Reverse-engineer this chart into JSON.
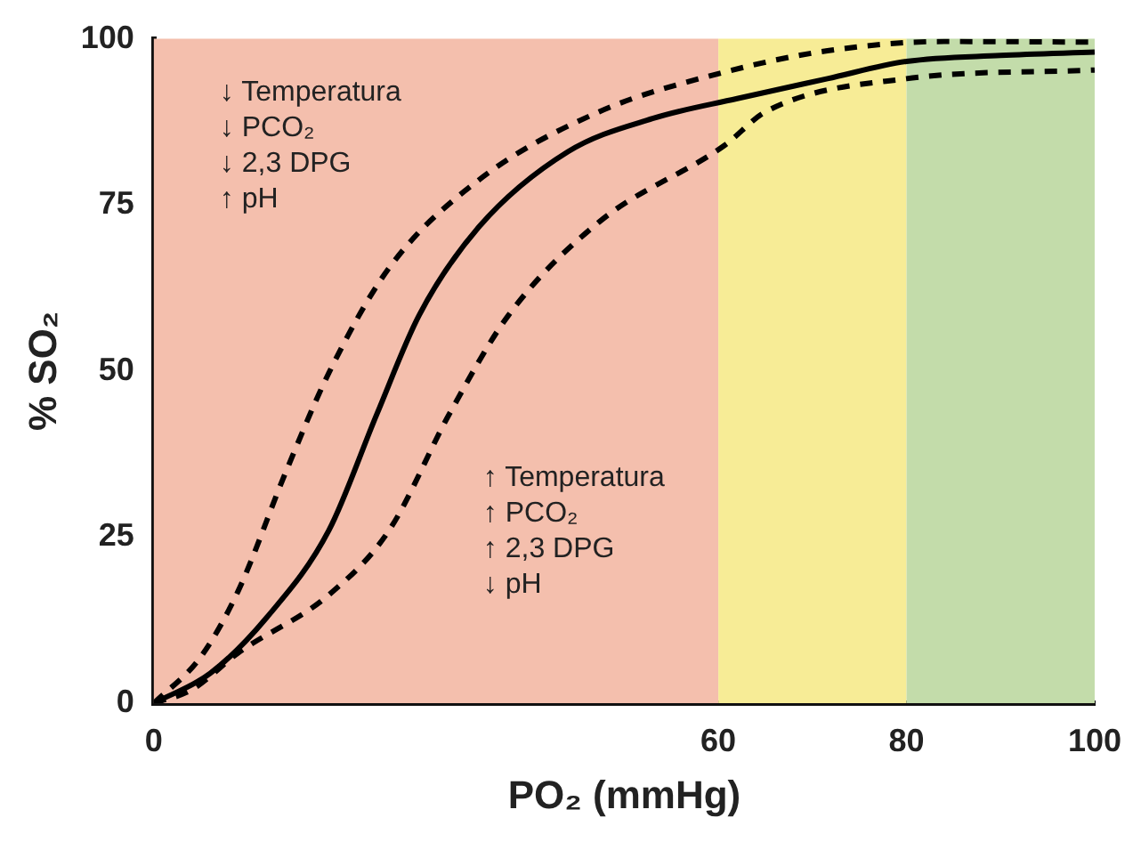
{
  "chart_data": {
    "type": "line",
    "xlabel": "PO₂ (mmHg)",
    "ylabel": "% SO₂",
    "xlim": [
      0,
      100
    ],
    "xticks": [
      0,
      60,
      80,
      100
    ],
    "ylim": [
      0,
      100
    ],
    "yticks": [
      0,
      25,
      50,
      75,
      100
    ],
    "grid": false,
    "legend": false,
    "marker": "none",
    "bands": [
      {
        "axis": "x",
        "from": 0,
        "to": 60,
        "color": "#f4bfad"
      },
      {
        "axis": "x",
        "from": 60,
        "to": 80,
        "color": "#f7ec96"
      },
      {
        "axis": "x",
        "from": 80,
        "to": 100,
        "color": "#c3dcaa"
      }
    ],
    "series": [
      {
        "color": "#000000",
        "line_style": "solid",
        "x": [
          0,
          6,
          12,
          18.6,
          23.7,
          28.2,
          34.5,
          44,
          53,
          62,
          71.6,
          80,
          90,
          100
        ],
        "values": [
          0,
          4.5,
          12.9,
          26,
          43.5,
          58.4,
          71.6,
          83,
          88,
          91,
          94,
          96.6,
          97.5,
          98
        ]
      },
      {
        "color": "#000000",
        "line_style": "dashed",
        "x": [
          0,
          5,
          9,
          14,
          18.6,
          25,
          34.5,
          47.3,
          60.7,
          71.6,
          84,
          100
        ],
        "values": [
          0,
          7,
          17,
          34.7,
          49.7,
          65.5,
          78.7,
          89,
          95,
          98.2,
          99.6,
          99.5
        ]
      },
      {
        "color": "#000000",
        "line_style": "dashed",
        "x": [
          0,
          4,
          9,
          18.6,
          25,
          31.4,
          37.7,
          47.3,
          60.7,
          65,
          80,
          100
        ],
        "values": [
          0,
          2,
          7.6,
          16.3,
          26,
          43.5,
          58.4,
          72.4,
          84,
          89,
          94,
          95.3
        ]
      }
    ],
    "annotations": [
      "↓ Temperatura\n↓ PCO₂\n↓ 2,3 DPG\n↑ pH",
      "↑ Temperatura\n↑ PCO₂\n↑ 2,3 DPG\n↓ pH"
    ]
  }
}
